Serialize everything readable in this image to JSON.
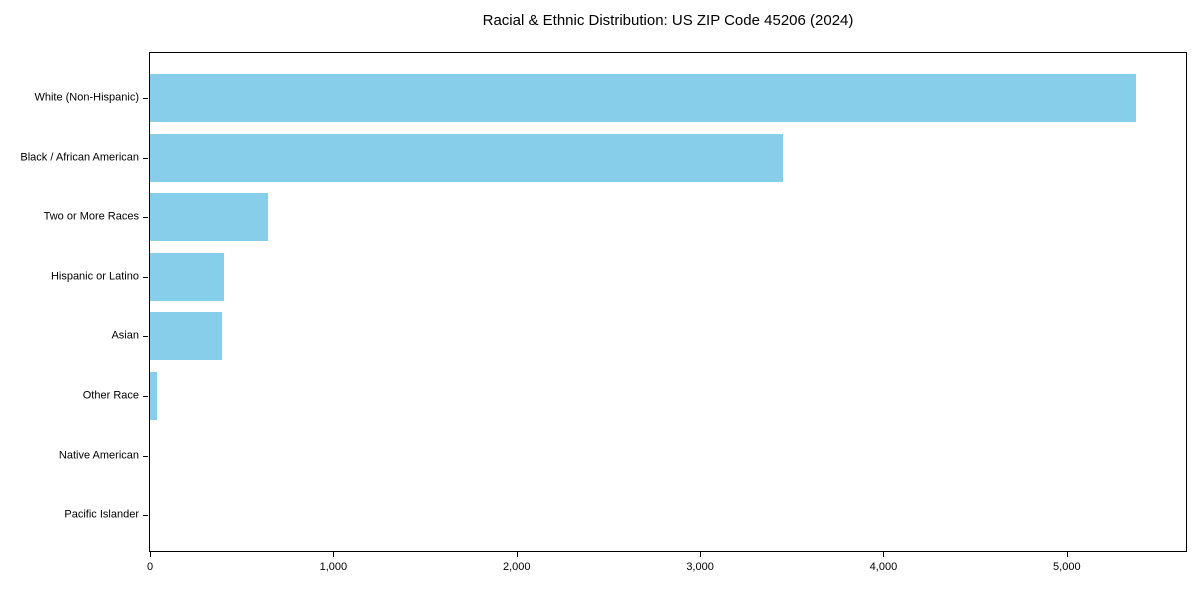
{
  "chart_data": {
    "type": "bar",
    "orientation": "horizontal",
    "title": "Racial & Ethnic Distribution: US ZIP Code 45206 (2024)",
    "categories": [
      "White (Non-Hispanic)",
      "Black / African American",
      "Two or More Races",
      "Hispanic or Latino",
      "Asian",
      "Other Race",
      "Native American",
      "Pacific Islander"
    ],
    "values": [
      5380,
      3450,
      645,
      405,
      395,
      40,
      0,
      0
    ],
    "xlabel": "",
    "ylabel": "",
    "xlim": [
      0,
      5650
    ],
    "x_ticks": [
      0,
      1000,
      2000,
      3000,
      4000,
      5000
    ],
    "x_tick_labels": [
      "0",
      "1,000",
      "2,000",
      "3,000",
      "4,000",
      "5,000"
    ],
    "bar_color": "#87CEEB",
    "background_color": "#ffffff",
    "spine_color": "#000000",
    "grid": false,
    "legend": false
  }
}
